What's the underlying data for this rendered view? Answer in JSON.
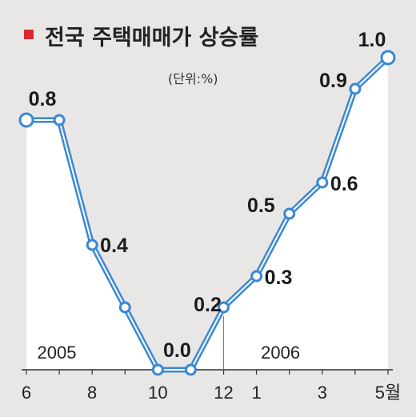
{
  "title": "전국 주택매매가 상승률",
  "unit": "(단위:%)",
  "colors": {
    "background": "#e9e7e6",
    "plot_fill": "#ffffff",
    "line": "#3b88d4",
    "title_marker": "#d92b2b"
  },
  "chart_data": {
    "type": "line",
    "title": "전국 주택매매가 상승률",
    "unit": "(단위:%)",
    "x": [
      "6",
      "7",
      "8",
      "9",
      "10",
      "11",
      "12",
      "1",
      "2",
      "3",
      "4",
      "5월"
    ],
    "x_tick_labels": [
      "6",
      "8",
      "10",
      "12",
      "1",
      "3",
      "5월"
    ],
    "year_labels": [
      "2005",
      "2006"
    ],
    "series": [
      {
        "values": [
          0.8,
          0.8,
          0.4,
          0.2,
          0.0,
          0.0,
          0.2,
          0.3,
          0.5,
          0.6,
          0.9,
          1.0
        ]
      }
    ],
    "data_labels": [
      "0.8",
      "",
      "0.4",
      "",
      "0.0",
      "",
      "0.2",
      "0.3",
      "0.5",
      "0.6",
      "0.9",
      "1.0"
    ],
    "ylim": [
      0,
      1.0
    ],
    "grid": false
  }
}
